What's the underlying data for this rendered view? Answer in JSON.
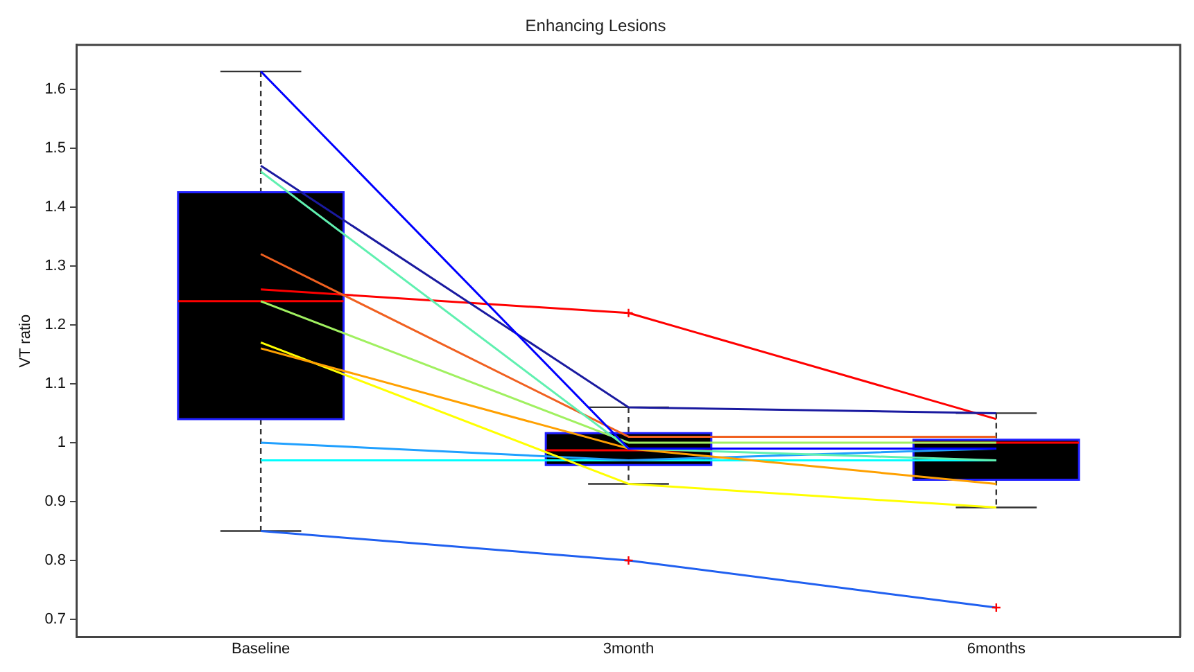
{
  "chart_data": {
    "type": "box",
    "title": "Enhancing Lesions",
    "ylabel": "VT ratio",
    "categories": [
      "Baseline",
      "3month",
      "6months"
    ],
    "boxes": [
      {
        "low": 0.85,
        "q1": 1.04,
        "median": 1.24,
        "q3": 1.425,
        "high": 1.63
      },
      {
        "low": 0.93,
        "q1": 0.962,
        "median": 0.987,
        "q3": 1.016,
        "high": 1.06,
        "outliers": [
          1.22,
          0.8
        ]
      },
      {
        "low": 0.89,
        "q1": 0.937,
        "median": 1.0,
        "q3": 1.005,
        "high": 1.05,
        "outliers": [
          0.72
        ]
      }
    ],
    "series": [
      {
        "type": "line",
        "color": "#0000ff",
        "values": [
          1.63,
          0.99,
          0.99
        ]
      },
      {
        "type": "line",
        "color": "#1a1aa0",
        "values": [
          1.47,
          1.06,
          1.05
        ]
      },
      {
        "type": "line",
        "color": "#60f0b0",
        "values": [
          1.46,
          0.99,
          0.97
        ]
      },
      {
        "type": "line",
        "color": "#f06020",
        "values": [
          1.32,
          1.01,
          1.01
        ]
      },
      {
        "type": "line",
        "color": "#ff0000",
        "values": [
          1.26,
          1.22,
          1.04
        ]
      },
      {
        "type": "line",
        "color": "#a0f060",
        "values": [
          1.24,
          1.0,
          1.0
        ]
      },
      {
        "type": "line",
        "color": "#ffa000",
        "values": [
          1.16,
          0.99,
          0.93
        ]
      },
      {
        "type": "line",
        "color": "#ffff00",
        "values": [
          1.17,
          0.93,
          0.89
        ]
      },
      {
        "type": "line",
        "color": "#20a0ff",
        "values": [
          1.0,
          0.97,
          0.99
        ]
      },
      {
        "type": "line",
        "color": "#00ffff",
        "values": [
          0.97,
          0.97,
          0.97
        ]
      },
      {
        "type": "line",
        "color": "#2060f0",
        "values": [
          0.85,
          0.8,
          0.72
        ]
      }
    ],
    "ylim": [
      0.67,
      1.675
    ],
    "yticks": [
      0.7,
      0.8,
      0.9,
      1,
      1.1,
      1.2,
      1.3,
      1.4,
      1.5,
      1.6
    ],
    "grid": false,
    "legend": false,
    "marker": "none",
    "line_style": "solid"
  }
}
